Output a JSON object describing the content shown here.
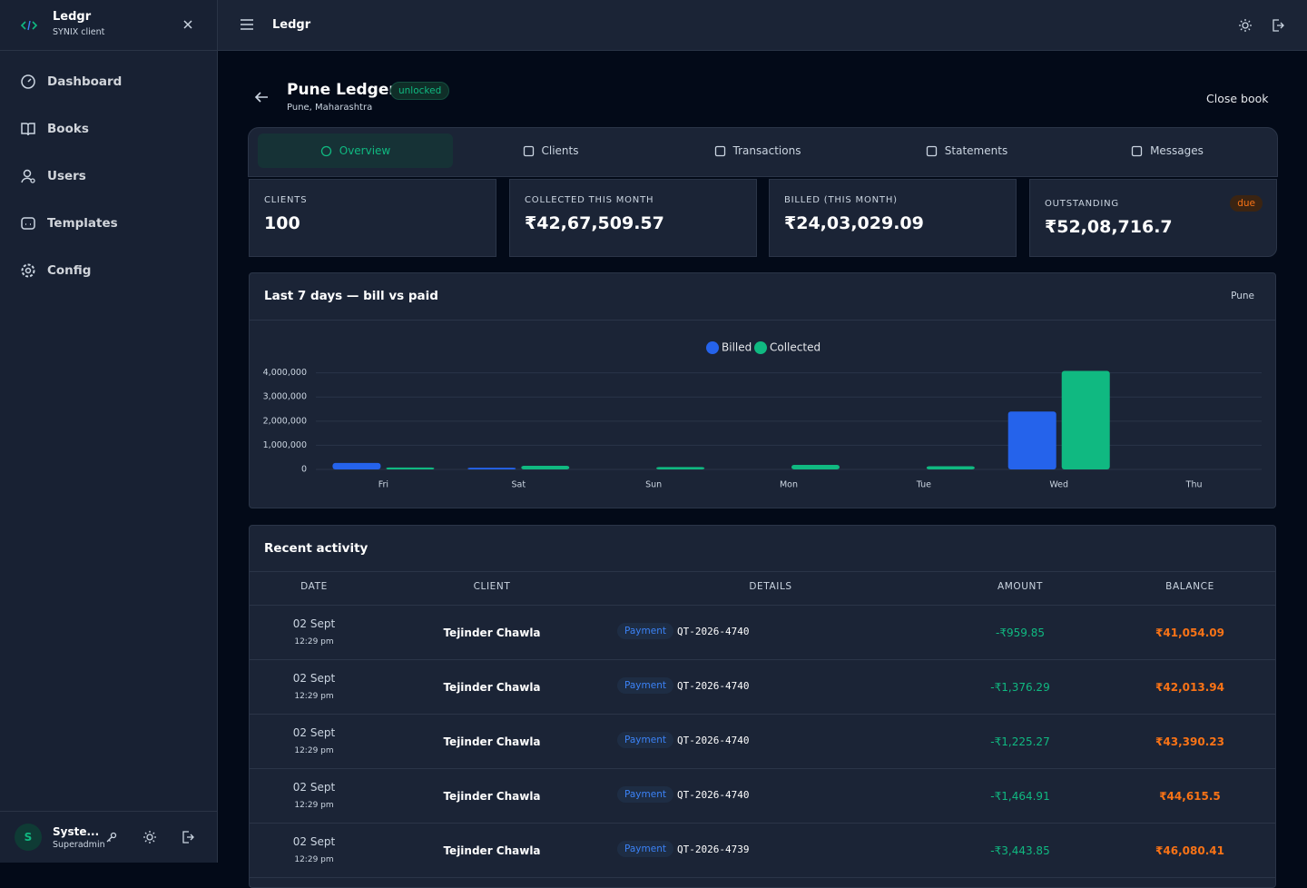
{
  "sidebar": {
    "brand": "Ledgr",
    "subtitle": "SYNIX client",
    "nav": [
      "Dashboard",
      "Books",
      "Users",
      "Templates",
      "Config"
    ],
    "user": {
      "avatar": "S",
      "name": "Syste...",
      "role": "Superadmin"
    }
  },
  "topbar": {
    "title": "Ledgr"
  },
  "header": {
    "title": "Pune Ledger",
    "badge": "unlocked",
    "location": "Pune, Maharashtra",
    "action": "Close book"
  },
  "tabs": [
    "Overview",
    "Clients",
    "Transactions",
    "Statements",
    "Messages"
  ],
  "stats": [
    {
      "label": "CLIENTS",
      "value": "100"
    },
    {
      "label": "COLLECTED THIS MONTH",
      "value": "₹42,67,509.57"
    },
    {
      "label": "BILLED (THIS MONTH)",
      "value": "₹24,03,029.09"
    },
    {
      "label": "OUTSTANDING",
      "value": "₹52,08,716.7",
      "badge": "due"
    }
  ],
  "chart_data": {
    "type": "bar",
    "title": "Last 7 days — bill vs paid",
    "tag": "Pune",
    "categories": [
      "Fri",
      "Sat",
      "Sun",
      "Mon",
      "Tue",
      "Wed",
      "Thu"
    ],
    "series": [
      {
        "name": "Billed",
        "color": "#2563eb",
        "values": [
          270000,
          70000,
          0,
          0,
          0,
          2400000,
          0
        ]
      },
      {
        "name": "Collected",
        "color": "#10b981",
        "values": [
          80000,
          150000,
          100000,
          190000,
          130000,
          4080000,
          0
        ]
      }
    ],
    "ylim": [
      0,
      4100000
    ],
    "yticks": [
      0,
      {
        "value": 1000000,
        "label": "1,000,000"
      },
      {
        "value": 2000000,
        "label": "2,000,000"
      },
      {
        "value": 3000000,
        "label": "3,000,000"
      },
      {
        "value": 4000000,
        "label": "4,000,000"
      }
    ],
    "grid": true,
    "legend": "top"
  },
  "activity": {
    "title": "Recent activity",
    "columns": [
      "DATE",
      "CLIENT",
      "DETAILS",
      "AMOUNT",
      "BALANCE"
    ],
    "rows": [
      {
        "date": "02 Sept",
        "time": "12:29 pm",
        "client": "Tejinder Chawla",
        "type": "Payment",
        "ref": "QT-2026-4740",
        "amount": "-₹959.85",
        "balance": "₹41,054.09"
      },
      {
        "date": "02 Sept",
        "time": "12:29 pm",
        "client": "Tejinder Chawla",
        "type": "Payment",
        "ref": "QT-2026-4740",
        "amount": "-₹1,376.29",
        "balance": "₹42,013.94"
      },
      {
        "date": "02 Sept",
        "time": "12:29 pm",
        "client": "Tejinder Chawla",
        "type": "Payment",
        "ref": "QT-2026-4740",
        "amount": "-₹1,225.27",
        "balance": "₹43,390.23"
      },
      {
        "date": "02 Sept",
        "time": "12:29 pm",
        "client": "Tejinder Chawla",
        "type": "Payment",
        "ref": "QT-2026-4740",
        "amount": "-₹1,464.91",
        "balance": "₹44,615.5"
      },
      {
        "date": "02 Sept",
        "time": "12:29 pm",
        "client": "Tejinder Chawla",
        "type": "Payment",
        "ref": "QT-2026-4739",
        "amount": "-₹3,443.85",
        "balance": "₹46,080.41"
      }
    ]
  }
}
